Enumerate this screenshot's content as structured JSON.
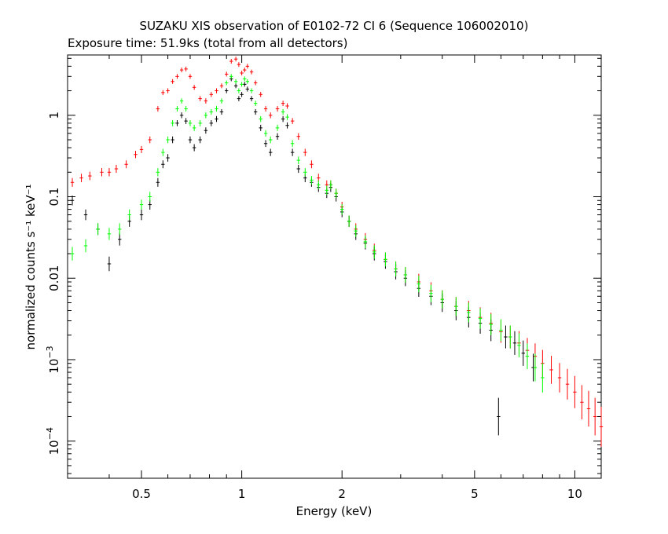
{
  "chart_data": {
    "type": "scatter",
    "title": "SUZAKU XIS observation of E0102-72 CI 6 (Sequence 106002010)",
    "subtitle": "Exposure time: 51.9ks (total from all detectors)",
    "xlabel": "Energy (keV)",
    "ylabel": "normalized counts s⁻¹ keV⁻¹",
    "x_scale": "log",
    "y_scale": "log",
    "xlim": [
      0.3,
      12.0
    ],
    "ylim": [
      3.5e-05,
      5.5
    ],
    "x_ticks": [
      {
        "value": 0.5,
        "label": "0.5"
      },
      {
        "value": 1,
        "label": "1"
      },
      {
        "value": 2,
        "label": "2"
      },
      {
        "value": 5,
        "label": "5"
      },
      {
        "value": 10,
        "label": "10"
      }
    ],
    "y_ticks": [
      {
        "value": 0.0001,
        "base": "10",
        "exp": "−4"
      },
      {
        "value": 0.001,
        "base": "10",
        "exp": "−3"
      },
      {
        "value": 0.01,
        "base": "0.01",
        "exp": ""
      },
      {
        "value": 0.1,
        "base": "0.1",
        "exp": ""
      },
      {
        "value": 1,
        "base": "1",
        "exp": ""
      }
    ],
    "series": [
      {
        "color": "#ff0000",
        "points": [
          [
            0.31,
            0.15
          ],
          [
            0.33,
            0.17
          ],
          [
            0.35,
            0.18
          ],
          [
            0.38,
            0.2
          ],
          [
            0.4,
            0.2
          ],
          [
            0.42,
            0.22
          ],
          [
            0.45,
            0.25
          ],
          [
            0.48,
            0.33
          ],
          [
            0.5,
            0.38
          ],
          [
            0.53,
            0.5
          ],
          [
            0.56,
            1.2
          ],
          [
            0.58,
            1.9
          ],
          [
            0.6,
            2.0
          ],
          [
            0.62,
            2.6
          ],
          [
            0.64,
            3.0
          ],
          [
            0.66,
            3.6
          ],
          [
            0.68,
            3.7
          ],
          [
            0.7,
            3.0
          ],
          [
            0.72,
            2.2
          ],
          [
            0.75,
            1.6
          ],
          [
            0.78,
            1.5
          ],
          [
            0.81,
            1.8
          ],
          [
            0.84,
            2.0
          ],
          [
            0.87,
            2.3
          ],
          [
            0.9,
            3.2
          ],
          [
            0.93,
            4.6
          ],
          [
            0.96,
            4.9
          ],
          [
            0.98,
            4.2
          ],
          [
            1.0,
            3.3
          ],
          [
            1.02,
            3.6
          ],
          [
            1.04,
            4.0
          ],
          [
            1.07,
            3.4
          ],
          [
            1.1,
            2.5
          ],
          [
            1.14,
            1.8
          ],
          [
            1.18,
            1.2
          ],
          [
            1.22,
            1.0
          ],
          [
            1.28,
            1.2
          ],
          [
            1.33,
            1.4
          ],
          [
            1.37,
            1.3
          ],
          [
            1.42,
            0.85
          ],
          [
            1.48,
            0.55
          ],
          [
            1.55,
            0.35
          ],
          [
            1.62,
            0.25
          ],
          [
            1.7,
            0.17
          ],
          [
            1.8,
            0.14
          ],
          [
            1.85,
            0.14
          ],
          [
            1.92,
            0.11
          ],
          [
            2.0,
            0.075
          ],
          [
            2.1,
            0.05
          ],
          [
            2.2,
            0.04
          ],
          [
            2.35,
            0.03
          ],
          [
            2.5,
            0.022
          ],
          [
            2.7,
            0.017
          ],
          [
            2.9,
            0.013
          ],
          [
            3.1,
            0.011
          ],
          [
            3.4,
            0.009
          ],
          [
            3.7,
            0.007
          ],
          [
            4.0,
            0.0055
          ],
          [
            4.4,
            0.0045
          ],
          [
            4.8,
            0.004
          ],
          [
            5.2,
            0.0033
          ],
          [
            5.6,
            0.0028
          ],
          [
            6.0,
            0.0022
          ],
          [
            6.4,
            0.0019
          ],
          [
            6.8,
            0.0016
          ],
          [
            7.2,
            0.0013
          ],
          [
            7.6,
            0.0011
          ],
          [
            8.0,
            0.0009
          ],
          [
            8.5,
            0.00075
          ],
          [
            9.0,
            0.0006
          ],
          [
            9.5,
            0.0005
          ],
          [
            10.0,
            0.0004
          ],
          [
            10.5,
            0.0003
          ],
          [
            11.0,
            0.00025
          ],
          [
            11.5,
            0.0002
          ],
          [
            12.0,
            0.00015
          ]
        ]
      },
      {
        "color": "#000000",
        "points": [
          [
            0.31,
            0.09
          ],
          [
            0.34,
            0.06
          ],
          [
            0.37,
            0.04
          ],
          [
            0.4,
            0.015
          ],
          [
            0.43,
            0.03
          ],
          [
            0.46,
            0.05
          ],
          [
            0.5,
            0.06
          ],
          [
            0.53,
            0.08
          ],
          [
            0.56,
            0.15
          ],
          [
            0.58,
            0.25
          ],
          [
            0.6,
            0.3
          ],
          [
            0.62,
            0.5
          ],
          [
            0.64,
            0.8
          ],
          [
            0.66,
            1.0
          ],
          [
            0.68,
            0.85
          ],
          [
            0.7,
            0.5
          ],
          [
            0.72,
            0.4
          ],
          [
            0.75,
            0.5
          ],
          [
            0.78,
            0.65
          ],
          [
            0.81,
            0.8
          ],
          [
            0.84,
            0.9
          ],
          [
            0.87,
            1.1
          ],
          [
            0.9,
            2.0
          ],
          [
            0.93,
            2.8
          ],
          [
            0.96,
            2.3
          ],
          [
            0.98,
            1.6
          ],
          [
            1.0,
            1.8
          ],
          [
            1.02,
            2.4
          ],
          [
            1.04,
            2.1
          ],
          [
            1.07,
            1.6
          ],
          [
            1.1,
            1.1
          ],
          [
            1.14,
            0.7
          ],
          [
            1.18,
            0.45
          ],
          [
            1.22,
            0.35
          ],
          [
            1.28,
            0.55
          ],
          [
            1.33,
            0.9
          ],
          [
            1.37,
            0.75
          ],
          [
            1.42,
            0.35
          ],
          [
            1.48,
            0.22
          ],
          [
            1.55,
            0.17
          ],
          [
            1.62,
            0.15
          ],
          [
            1.7,
            0.13
          ],
          [
            1.8,
            0.11
          ],
          [
            1.85,
            0.13
          ],
          [
            1.92,
            0.1
          ],
          [
            2.0,
            0.065
          ],
          [
            2.1,
            0.05
          ],
          [
            2.2,
            0.035
          ],
          [
            2.35,
            0.027
          ],
          [
            2.5,
            0.02
          ],
          [
            2.7,
            0.016
          ],
          [
            2.9,
            0.012
          ],
          [
            3.1,
            0.01
          ],
          [
            3.4,
            0.0075
          ],
          [
            3.7,
            0.006
          ],
          [
            4.0,
            0.005
          ],
          [
            4.4,
            0.004
          ],
          [
            4.8,
            0.0033
          ],
          [
            5.2,
            0.0028
          ],
          [
            5.6,
            0.0023
          ],
          [
            5.9,
            0.0002
          ],
          [
            6.2,
            0.0019
          ],
          [
            6.6,
            0.0016
          ],
          [
            7.0,
            0.0012
          ],
          [
            7.5,
            0.0008
          ]
        ]
      },
      {
        "color": "#00ff00",
        "points": [
          [
            0.31,
            0.02
          ],
          [
            0.34,
            0.025
          ],
          [
            0.37,
            0.04
          ],
          [
            0.4,
            0.035
          ],
          [
            0.43,
            0.04
          ],
          [
            0.46,
            0.06
          ],
          [
            0.5,
            0.08
          ],
          [
            0.53,
            0.1
          ],
          [
            0.56,
            0.2
          ],
          [
            0.58,
            0.35
          ],
          [
            0.6,
            0.5
          ],
          [
            0.62,
            0.8
          ],
          [
            0.64,
            1.2
          ],
          [
            0.66,
            1.5
          ],
          [
            0.68,
            1.2
          ],
          [
            0.7,
            0.8
          ],
          [
            0.72,
            0.7
          ],
          [
            0.75,
            0.8
          ],
          [
            0.78,
            1.0
          ],
          [
            0.81,
            1.1
          ],
          [
            0.84,
            1.2
          ],
          [
            0.87,
            1.5
          ],
          [
            0.9,
            2.5
          ],
          [
            0.93,
            3.0
          ],
          [
            0.96,
            2.6
          ],
          [
            0.98,
            2.0
          ],
          [
            1.0,
            2.4
          ],
          [
            1.02,
            2.8
          ],
          [
            1.04,
            2.6
          ],
          [
            1.07,
            2.0
          ],
          [
            1.1,
            1.4
          ],
          [
            1.14,
            0.9
          ],
          [
            1.18,
            0.6
          ],
          [
            1.22,
            0.5
          ],
          [
            1.28,
            0.7
          ],
          [
            1.33,
            1.1
          ],
          [
            1.37,
            0.95
          ],
          [
            1.42,
            0.45
          ],
          [
            1.48,
            0.28
          ],
          [
            1.55,
            0.2
          ],
          [
            1.62,
            0.16
          ],
          [
            1.7,
            0.14
          ],
          [
            1.8,
            0.12
          ],
          [
            1.85,
            0.14
          ],
          [
            1.92,
            0.11
          ],
          [
            2.0,
            0.07
          ],
          [
            2.1,
            0.05
          ],
          [
            2.2,
            0.038
          ],
          [
            2.35,
            0.028
          ],
          [
            2.5,
            0.021
          ],
          [
            2.7,
            0.017
          ],
          [
            2.9,
            0.013
          ],
          [
            3.1,
            0.011
          ],
          [
            3.4,
            0.0085
          ],
          [
            3.7,
            0.0065
          ],
          [
            4.0,
            0.0055
          ],
          [
            4.4,
            0.0045
          ],
          [
            4.8,
            0.0038
          ],
          [
            5.2,
            0.0032
          ],
          [
            5.6,
            0.0027
          ],
          [
            6.0,
            0.0023
          ],
          [
            6.4,
            0.0019
          ],
          [
            6.8,
            0.0015
          ],
          [
            7.2,
            0.0011
          ],
          [
            7.6,
            0.0008
          ],
          [
            8.0,
            0.0006
          ]
        ]
      }
    ]
  }
}
